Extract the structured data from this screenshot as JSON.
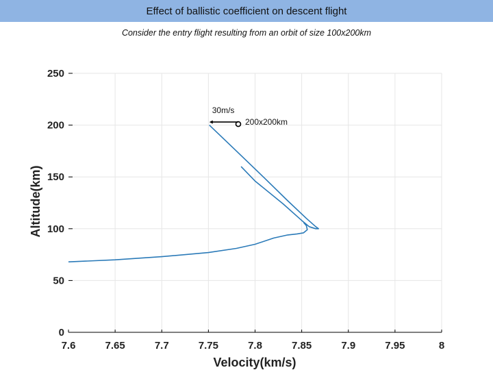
{
  "page": {
    "title": "Effect of ballistic coefficient on descent flight",
    "subtitle": "Consider the entry flight resulting from an orbit of size 100x200km"
  },
  "chart_data": {
    "type": "line",
    "title": "",
    "xlabel": "Velocity(km/s)",
    "ylabel": "Altitude(km)",
    "xlim": [
      7.6,
      8.0
    ],
    "ylim": [
      0,
      250
    ],
    "xticks": [
      "7.6",
      "7.65",
      "7.7",
      "7.75",
      "7.8",
      "7.85",
      "7.9",
      "7.95",
      "8"
    ],
    "yticks": [
      "0",
      "50",
      "100",
      "150",
      "200",
      "250"
    ],
    "grid": true,
    "colors": {
      "series": "#2a7ab8",
      "annotation": "#000000",
      "grid": "#e6e6e6",
      "axis": "#000000"
    },
    "series": [
      {
        "x": [
          7.751,
          7.78,
          7.81,
          7.835,
          7.855,
          7.865,
          7.868,
          7.865,
          7.858,
          7.85,
          7.83,
          7.8,
          7.785
        ],
        "y": [
          200,
          175,
          149,
          127,
          110,
          102,
          100,
          100,
          102,
          108,
          124,
          146,
          160
        ]
      },
      {
        "x": [
          7.6,
          7.65,
          7.7,
          7.75,
          7.78,
          7.8,
          7.82,
          7.835,
          7.845,
          7.852,
          7.856,
          7.855,
          7.852
        ],
        "y": [
          68,
          70,
          73,
          77,
          81,
          85,
          91,
          94,
          95,
          96,
          99,
          103,
          106
        ]
      }
    ],
    "annotations": [
      {
        "text": "30m/s",
        "x": 7.751,
        "y": 203,
        "type": "arrow",
        "x_from": 7.782,
        "x_to": 7.751
      },
      {
        "text": "200x200km",
        "x": 7.782,
        "y": 201,
        "type": "circle"
      }
    ]
  }
}
